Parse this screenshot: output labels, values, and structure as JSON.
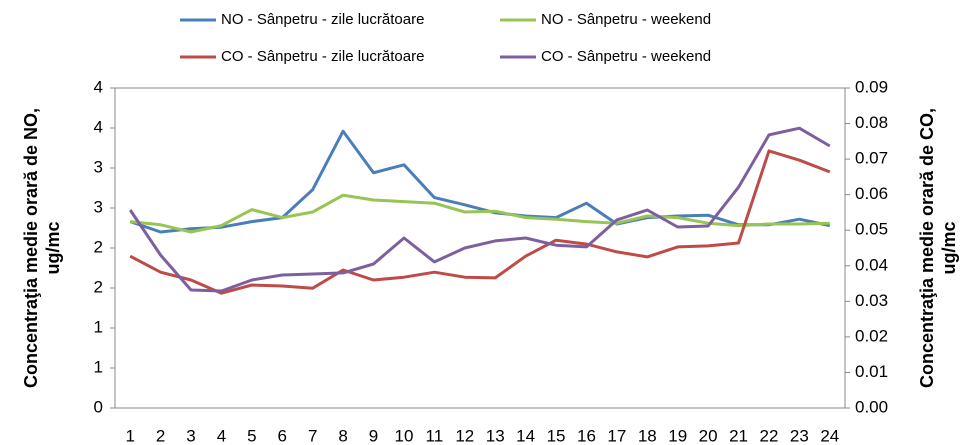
{
  "chart_data": {
    "type": "line",
    "categories": [
      "1",
      "2",
      "3",
      "4",
      "5",
      "6",
      "7",
      "8",
      "9",
      "10",
      "11",
      "12",
      "13",
      "14",
      "15",
      "16",
      "17",
      "18",
      "19",
      "20",
      "21",
      "22",
      "23",
      "24"
    ],
    "y_label": [
      "Concentraţia medie orară de NO,",
      "ug/mc"
    ],
    "y2_label": [
      "Concentraţia medie orară de CO,",
      "ug/mc"
    ],
    "ylim": [
      0,
      4
    ],
    "yticks": [
      0,
      {
        "value": 0.5,
        "label": "1"
      },
      1,
      {
        "value": 1.5,
        "label": "2"
      },
      2,
      {
        "value": 2.5,
        "label": "3"
      },
      3,
      {
        "value": 3.5,
        "label": "4"
      },
      4
    ],
    "y2lim": [
      0,
      0.09
    ],
    "y2ticks": [
      {
        "value": 0,
        "label": "0.00"
      },
      {
        "value": 0.01,
        "label": "0.01"
      },
      {
        "value": 0.02,
        "label": "0.02"
      },
      {
        "value": 0.03,
        "label": "0.03"
      },
      {
        "value": 0.04,
        "label": "0.04"
      },
      {
        "value": 0.05,
        "label": "0.05"
      },
      {
        "value": 0.06,
        "label": "0.06"
      },
      {
        "value": 0.07,
        "label": "0.07"
      },
      {
        "value": 0.08,
        "label": "0.08"
      },
      {
        "value": 0.09,
        "label": "0.09"
      }
    ],
    "grid": false,
    "legend": "top",
    "series": [
      {
        "name": "NO - Sânpetru - zile lucrătoare",
        "color": "#4a7ebb",
        "values": [
          2.33,
          2.2,
          2.24,
          2.26,
          2.33,
          2.38,
          2.73,
          3.46,
          2.94,
          3.04,
          2.63,
          2.54,
          2.44,
          2.4,
          2.38,
          2.56,
          2.3,
          2.38,
          2.4,
          2.41,
          2.29,
          2.29,
          2.36,
          2.28
        ]
      },
      {
        "name": "NO - Sânpetru - weekend",
        "color": "#98c454",
        "values": [
          2.33,
          2.29,
          2.2,
          2.28,
          2.48,
          2.38,
          2.45,
          2.66,
          2.6,
          2.58,
          2.56,
          2.45,
          2.46,
          2.38,
          2.36,
          2.33,
          2.31,
          2.4,
          2.38,
          2.31,
          2.28,
          2.3,
          2.3,
          2.31
        ]
      },
      {
        "name": "CO - Sânpetru - zile lucrătoare",
        "color": "#be4b48",
        "axis": "y2",
        "values": [
          0.0427,
          0.0382,
          0.036,
          0.0323,
          0.0346,
          0.0343,
          0.0337,
          0.0388,
          0.036,
          0.0368,
          0.0382,
          0.0368,
          0.0366,
          0.0427,
          0.0472,
          0.0461,
          0.0439,
          0.0425,
          0.0453,
          0.0456,
          0.0464,
          0.0723,
          0.0697,
          0.0664
        ]
      },
      {
        "name": "CO - Sânpetru - weekend",
        "color": "#7d5fa0",
        "axis": "y2",
        "values": [
          0.0557,
          0.043,
          0.0332,
          0.0329,
          0.036,
          0.0374,
          0.0377,
          0.038,
          0.0405,
          0.0478,
          0.0411,
          0.045,
          0.047,
          0.0478,
          0.0458,
          0.0453,
          0.0529,
          0.0557,
          0.0509,
          0.0512,
          0.0621,
          0.0768,
          0.0787,
          0.0737
        ]
      }
    ]
  }
}
